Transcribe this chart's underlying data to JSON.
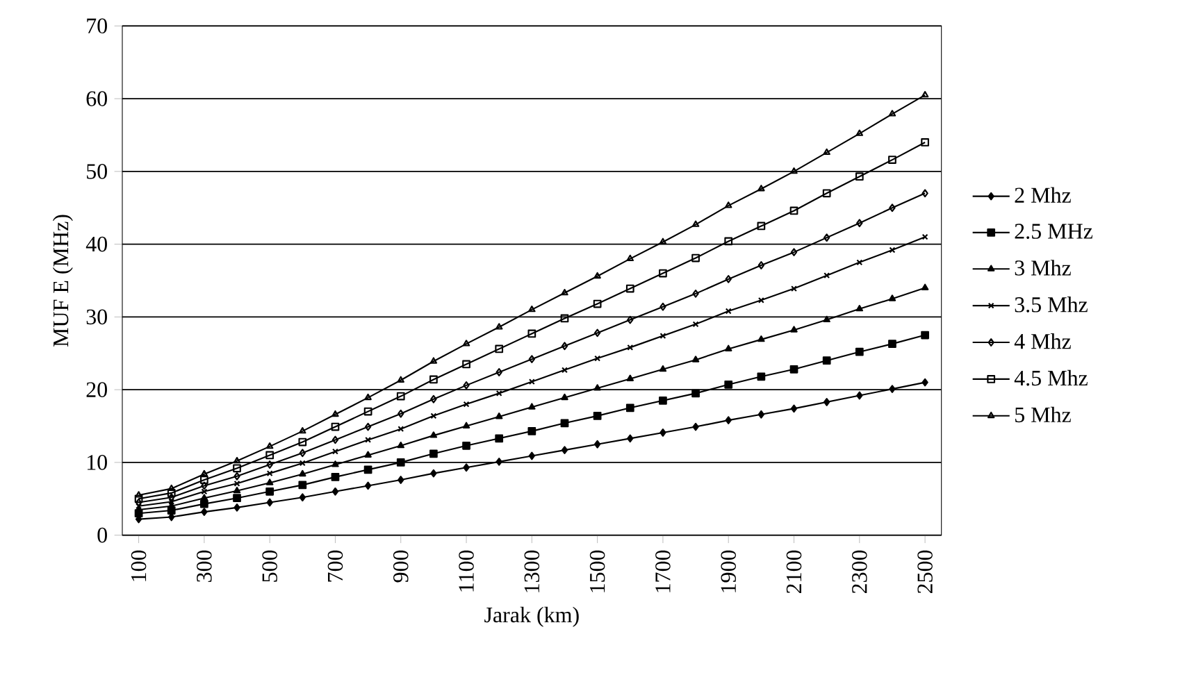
{
  "chart_data": {
    "type": "line",
    "xlabel": "Jarak (km)",
    "ylabel": "MUF E (MHz)",
    "x": [
      100,
      200,
      300,
      400,
      500,
      600,
      700,
      800,
      900,
      1000,
      1100,
      1200,
      1300,
      1400,
      1500,
      1600,
      1700,
      1800,
      1900,
      2000,
      2100,
      2200,
      2300,
      2400,
      2500
    ],
    "xlim": [
      50,
      2550
    ],
    "xticks": [
      100,
      300,
      500,
      700,
      900,
      1100,
      1300,
      1500,
      1700,
      1900,
      2100,
      2300,
      2500
    ],
    "ylim": [
      0,
      70
    ],
    "yticks": [
      0,
      10,
      20,
      30,
      40,
      50,
      60,
      70
    ],
    "grid": "y",
    "legend": "right",
    "series": [
      {
        "name": "2 Mhz",
        "color": "#000000",
        "marker": "diamond",
        "values": [
          2.2,
          2.5,
          3.2,
          3.8,
          4.5,
          5.2,
          6,
          6.8,
          7.6,
          8.5,
          9.3,
          10.1,
          10.9,
          11.7,
          12.5,
          13.3,
          14.1,
          14.9,
          15.8,
          16.6,
          17.4,
          18.3,
          19.2,
          20.1,
          21
        ]
      },
      {
        "name": "2.5 MHz",
        "color": "#000000",
        "marker": "square",
        "values": [
          3,
          3.4,
          4.3,
          5.1,
          6.0,
          6.9,
          8.0,
          9.0,
          10.0,
          11.2,
          12.3,
          13.3,
          14.3,
          15.4,
          16.4,
          17.5,
          18.5,
          19.5,
          20.7,
          21.8,
          22.8,
          24.0,
          25.2,
          26.3,
          27.5
        ]
      },
      {
        "name": "3 Mhz",
        "color": "#000000",
        "marker": "triangle",
        "values": [
          3.5,
          4.0,
          5.1,
          6.1,
          7.2,
          8.4,
          9.7,
          11.0,
          12.3,
          13.7,
          15.0,
          16.3,
          17.6,
          18.9,
          20.2,
          21.5,
          22.8,
          24.1,
          25.6,
          26.9,
          28.2,
          29.6,
          31.1,
          32.5,
          34
        ]
      },
      {
        "name": "3.5 Mhz",
        "color": "#000000",
        "marker": "cross",
        "values": [
          4,
          4.6,
          6.0,
          7.1,
          8.5,
          9.9,
          11.5,
          13.1,
          14.6,
          16.4,
          18.0,
          19.5,
          21.1,
          22.7,
          24.3,
          25.8,
          27.4,
          29.0,
          30.8,
          32.3,
          33.9,
          35.7,
          37.5,
          39.2,
          41
        ]
      },
      {
        "name": "4 Mhz",
        "color": "#000000",
        "marker": "diamond",
        "values": [
          4.5,
          5.2,
          6.8,
          8.1,
          9.7,
          11.3,
          13.1,
          14.9,
          16.7,
          18.7,
          20.6,
          22.4,
          24.2,
          26.0,
          27.8,
          29.6,
          31.4,
          33.2,
          35.2,
          37.1,
          38.9,
          40.9,
          42.9,
          45.0,
          47
        ]
      },
      {
        "name": "4.5 Mhz",
        "color": "#000000",
        "marker": "square",
        "values": [
          5,
          5.8,
          7.6,
          9.2,
          11.0,
          12.8,
          14.9,
          17.0,
          19.1,
          21.4,
          23.5,
          25.6,
          27.7,
          29.8,
          31.8,
          33.9,
          36.0,
          38.1,
          40.4,
          42.5,
          44.6,
          47.0,
          49.3,
          51.6,
          54
        ]
      },
      {
        "name": "5 Mhz",
        "color": "#000000",
        "marker": "triangle",
        "values": [
          5.5,
          6.4,
          8.4,
          10.2,
          12.2,
          14.3,
          16.6,
          18.9,
          21.3,
          23.9,
          26.3,
          28.6,
          31.0,
          33.3,
          35.6,
          38.0,
          40.3,
          42.7,
          45.3,
          47.6,
          50.0,
          52.6,
          55.2,
          57.9,
          60.5
        ]
      }
    ]
  }
}
